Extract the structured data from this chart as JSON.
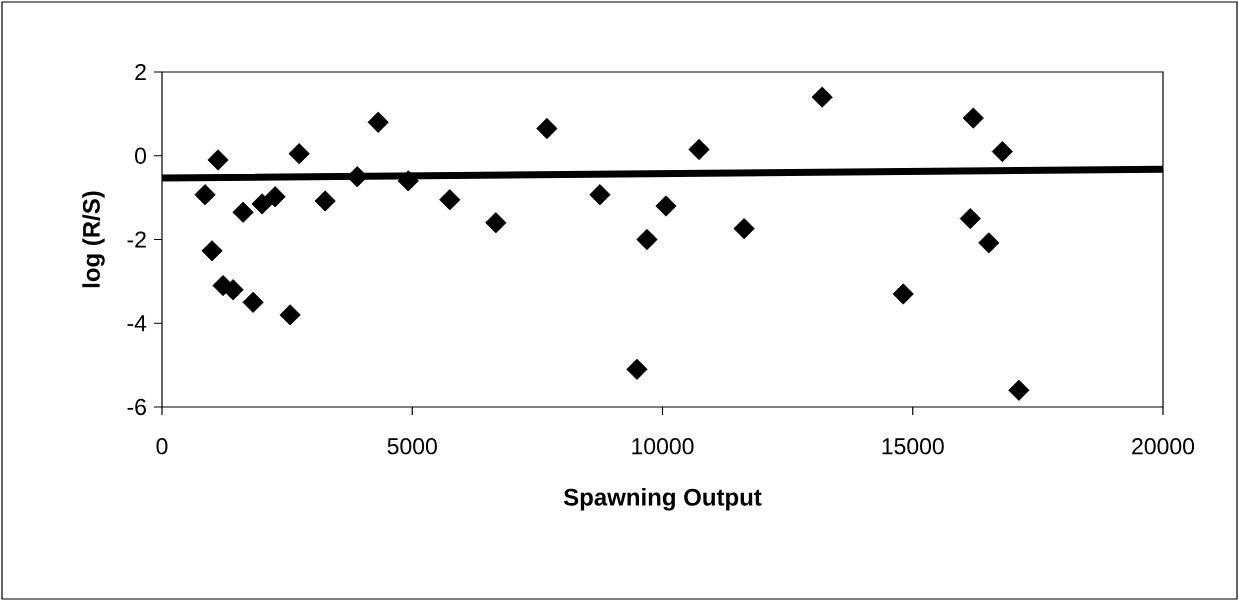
{
  "chart_data": {
    "type": "scatter",
    "xlabel": "Spawning Output",
    "ylabel": "log (R/S)",
    "xlim": [
      0,
      20000
    ],
    "ylim": [
      -6,
      2
    ],
    "xticks": [
      0,
      5000,
      10000,
      15000,
      20000
    ],
    "yticks": [
      -6,
      -4,
      -2,
      0,
      2
    ],
    "grid": false,
    "series": [
      {
        "color": "#000000",
        "marker": "diamond",
        "x": [
          860,
          1000,
          1120,
          1220,
          1420,
          1620,
          1820,
          2000,
          2260,
          2560,
          2740,
          3260,
          3900,
          4320,
          4920,
          5750,
          6670,
          7690,
          8750,
          9490,
          9690,
          10070,
          10730,
          11630,
          13190,
          14810,
          16150,
          16210,
          16520,
          16790,
          17120
        ],
        "values": [
          -0.93,
          -2.27,
          -0.1,
          -3.1,
          -3.2,
          -1.35,
          -3.5,
          -1.15,
          -0.98,
          -3.8,
          0.05,
          -1.08,
          -0.5,
          0.8,
          -0.6,
          -1.05,
          -1.6,
          0.65,
          -0.93,
          -5.1,
          -2.0,
          -1.2,
          0.15,
          -1.74,
          1.4,
          -3.3,
          -1.5,
          0.9,
          -2.08,
          0.1,
          -5.6
        ]
      },
      {
        "type": "line",
        "marker": "none",
        "color": "#000000",
        "x": [
          0,
          20000
        ],
        "values": [
          -0.53,
          -0.32
        ]
      }
    ]
  }
}
